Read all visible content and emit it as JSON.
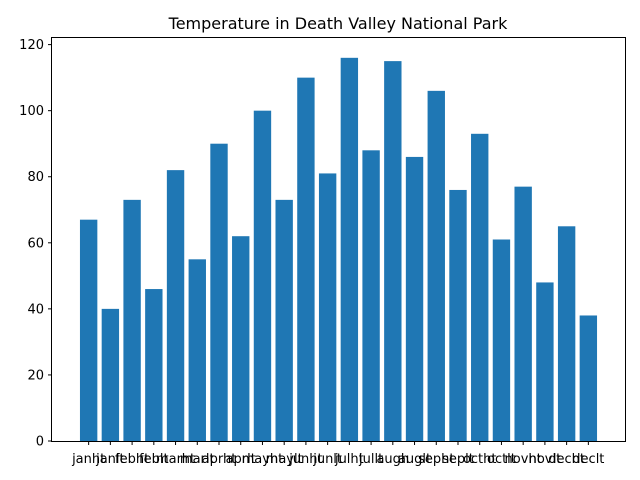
{
  "chart_data": {
    "type": "bar",
    "title": "Temperature in Death Valley National Park",
    "xlabel": "",
    "ylabel": "",
    "ylim": [
      0,
      122
    ],
    "yticks": [
      0,
      20,
      40,
      60,
      80,
      100,
      120
    ],
    "bar_color": "#1f77b4",
    "grid": false,
    "categories": [
      "janht",
      "janlt",
      "febht",
      "feblt",
      "marht",
      "marlt",
      "aprht",
      "aprlt",
      "mayht",
      "maylt",
      "junht",
      "junlt",
      "julht",
      "jullt",
      "augh",
      "auglt",
      "sepht",
      "seplt",
      "octht",
      "octlt",
      "novht",
      "novlt",
      "decht",
      "declt"
    ],
    "values": [
      67,
      40,
      73,
      46,
      82,
      55,
      90,
      62,
      100,
      73,
      110,
      81,
      116,
      88,
      115,
      86,
      106,
      76,
      93,
      61,
      77,
      48,
      65,
      38
    ]
  }
}
